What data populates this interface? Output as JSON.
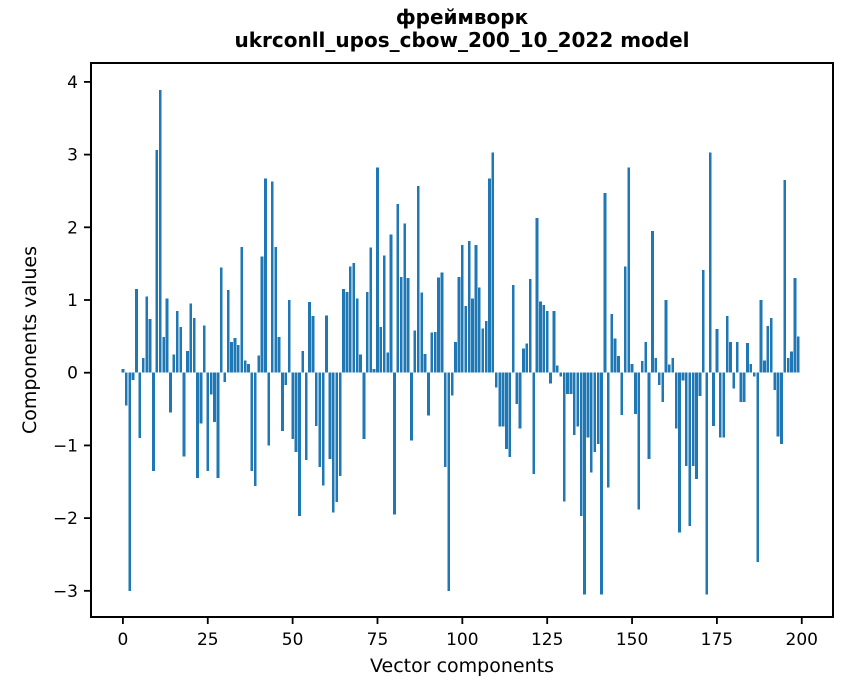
{
  "figure": {
    "title_line1": "фреймворк",
    "title_line2": "ukrconll_upos_cbow_200_10_2022 model"
  },
  "chart_data": {
    "type": "bar",
    "title": "фреймворк\nukrconll_upos_cbow_200_10_2022 model",
    "xlabel": "Vector components",
    "ylabel": "Components values",
    "x_ticks": [
      0,
      25,
      50,
      75,
      100,
      125,
      150,
      175,
      200
    ],
    "y_ticks": [
      4,
      3,
      2,
      1,
      0,
      -1,
      -2,
      -3
    ],
    "xlim": [
      -9.4,
      209.2
    ],
    "ylim": [
      -3.36,
      4.26
    ],
    "grid": false,
    "legend": false,
    "bar_color": "#1f77b4",
    "n_components": 200,
    "x_is_index_from": 0,
    "values": [
      0.05,
      -0.45,
      -3.0,
      -0.1,
      1.15,
      -0.9,
      0.2,
      1.05,
      0.74,
      -1.35,
      3.06,
      3.89,
      0.49,
      1.02,
      -0.55,
      0.25,
      0.85,
      0.63,
      -1.15,
      0.3,
      0.95,
      0.75,
      -1.45,
      -0.7,
      0.65,
      -1.35,
      -0.3,
      -0.68,
      -1.45,
      1.45,
      -0.13,
      1.14,
      0.42,
      0.48,
      0.38,
      1.73,
      0.17,
      0.12,
      -1.35,
      -1.56,
      0.24,
      1.6,
      2.67,
      -1.0,
      2.63,
      1.73,
      0.49,
      -0.8,
      -0.17,
      1.0,
      -0.91,
      -1.09,
      -1.97,
      0.3,
      -1.2,
      0.97,
      0.78,
      -0.73,
      -1.3,
      -1.55,
      0.79,
      -1.19,
      -1.92,
      -1.78,
      -1.42,
      1.15,
      1.11,
      1.46,
      1.51,
      1.02,
      0.25,
      -0.91,
      1.11,
      1.72,
      0.05,
      2.82,
      0.63,
      1.61,
      0.28,
      1.9,
      -1.95,
      2.32,
      1.32,
      2.05,
      1.3,
      -0.93,
      0.58,
      2.57,
      1.1,
      0.26,
      -0.59,
      0.55,
      0.56,
      1.31,
      1.38,
      -1.3,
      -3.0,
      -0.31,
      0.42,
      1.32,
      1.76,
      0.92,
      1.81,
      1.02,
      1.76,
      1.17,
      0.61,
      0.71,
      2.67,
      3.03,
      -0.2,
      -0.74,
      -0.74,
      -1.05,
      -1.16,
      1.21,
      -0.43,
      -0.77,
      0.33,
      0.4,
      1.29,
      -1.39,
      2.13,
      0.98,
      0.93,
      0.85,
      -0.15,
      0.85,
      0.1,
      -0.05,
      -1.77,
      -0.29,
      -0.29,
      -0.86,
      -0.74,
      -1.97,
      -3.05,
      -0.89,
      -1.37,
      -1.09,
      -0.98,
      -3.05,
      2.47,
      -1.58,
      0.81,
      0.47,
      0.23,
      -0.58,
      1.46,
      2.82,
      0.12,
      -0.57,
      -1.88,
      0.16,
      0.42,
      -1.19,
      1.95,
      0.2,
      -0.17,
      -0.4,
      1.0,
      0.11,
      0.2,
      -0.77,
      -2.2,
      -0.11,
      -1.28,
      -2.11,
      -1.28,
      -1.46,
      -0.32,
      1.41,
      -3.05,
      3.03,
      -0.73,
      0.6,
      -0.89,
      -0.89,
      0.78,
      0.42,
      -0.22,
      0.42,
      -0.4,
      -0.4,
      0.41,
      0.12,
      -0.05,
      -2.6,
      1.0,
      0.17,
      0.64,
      0.75,
      -0.24,
      -0.88,
      -0.98,
      2.65,
      0.2,
      0.29,
      1.3,
      0.5
    ]
  }
}
